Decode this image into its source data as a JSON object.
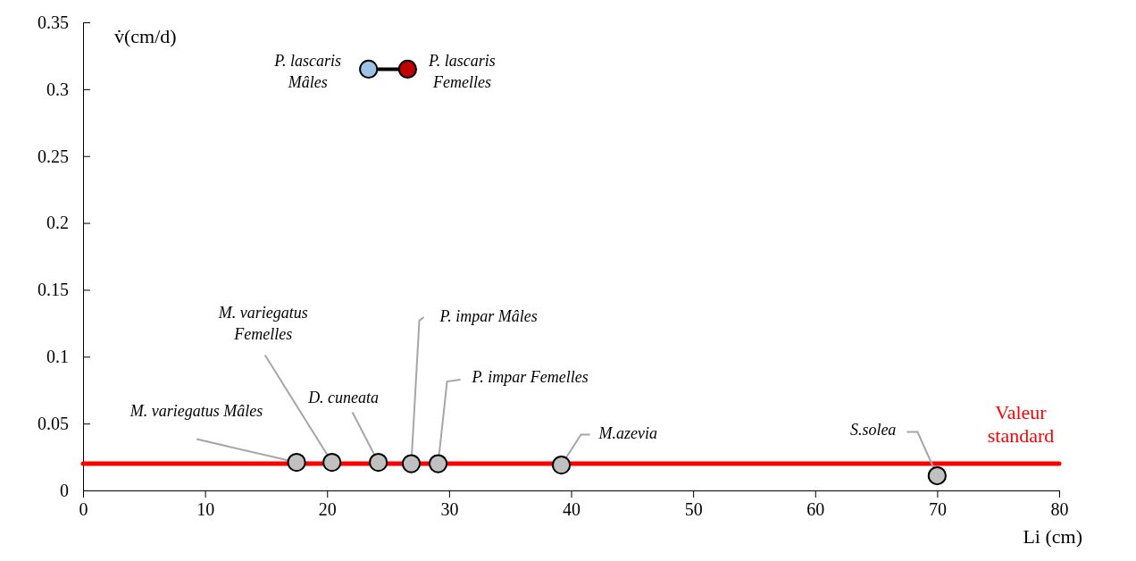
{
  "chart_data": {
    "type": "scatter",
    "ylabel": "v̇(cm/d)",
    "xlabel": "Li (cm)",
    "xlim": [
      0,
      80
    ],
    "xticks": [
      0,
      10,
      20,
      30,
      40,
      50,
      60,
      70,
      80
    ],
    "ylim": [
      0,
      0.35
    ],
    "yticks": [
      0,
      0.05,
      0.1,
      0.15,
      0.2,
      0.25,
      0.3,
      0.35
    ],
    "marker": "circle",
    "grid": false,
    "series": [
      {
        "type": "scatter",
        "color": "#c0c0c0",
        "x": [
          17.5,
          20.4,
          24.2,
          26.9,
          29.1,
          39.2,
          70.0
        ],
        "values": [
          0.021,
          0.021,
          0.021,
          0.02,
          0.02,
          0.019,
          0.011
        ]
      },
      {
        "type": "line",
        "color": "#000000",
        "colors": [
          "#9dc3e6",
          "#c00000"
        ],
        "x": [
          23.4,
          26.6
        ],
        "values": [
          0.315,
          0.315
        ]
      }
    ],
    "ref_lines": [
      {
        "axis": "y",
        "value": 0.02,
        "label": "Valeur standard",
        "color": "#ff0000"
      }
    ],
    "annotations": [
      {
        "text": "M. variegatus Mâles",
        "x": 17.5,
        "y": 0.021
      },
      {
        "text": "M. variegatus Femelles",
        "x": 20.4,
        "y": 0.021
      },
      {
        "text": "D. cuneata",
        "x": 24.2,
        "y": 0.021
      },
      {
        "text": "P. impar Mâles",
        "x": 26.9,
        "y": 0.02
      },
      {
        "text": "P. impar Femelles",
        "x": 29.1,
        "y": 0.02
      },
      {
        "text": "M.azevia",
        "x": 39.2,
        "y": 0.019
      },
      {
        "text": "S.solea",
        "x": 70.0,
        "y": 0.011
      },
      {
        "text": "P. lascaris Mâles",
        "x": 23.4,
        "y": 0.315
      },
      {
        "text": "P. lascaris Femelles",
        "x": 26.6,
        "y": 0.315
      }
    ]
  }
}
